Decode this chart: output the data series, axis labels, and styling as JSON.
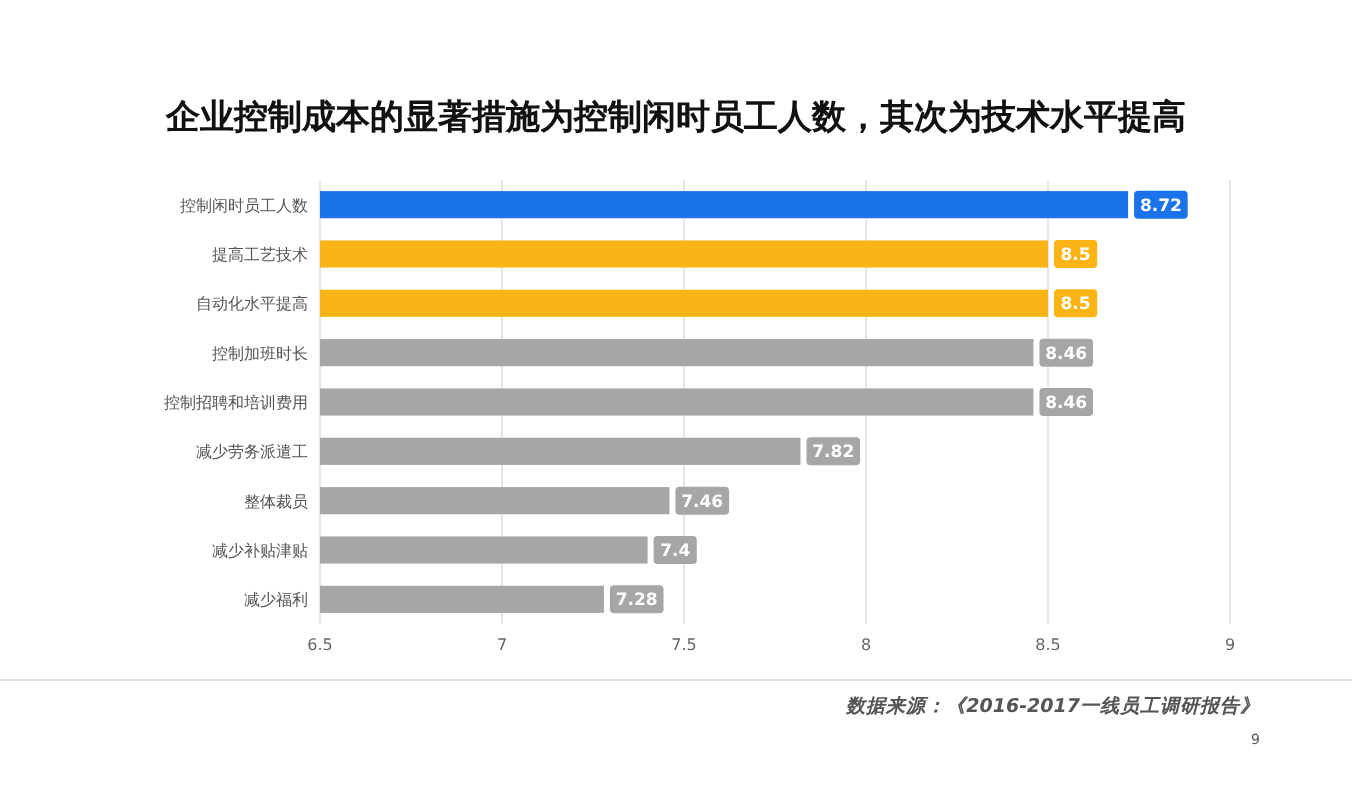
{
  "chart_data": {
    "type": "bar",
    "orientation": "horizontal",
    "title": "企业控制成本的显著措施为控制闲时员工人数，其次为技术水平提高",
    "categories": [
      "控制闲时员工人数",
      "提高工艺技术",
      "自动化水平提高",
      "控制加班时长",
      "控制招聘和培训费用",
      "减少劳务派遣工",
      "整体裁员",
      "减少补贴津贴",
      "减少福利"
    ],
    "values": [
      8.72,
      8.5,
      8.5,
      8.46,
      8.46,
      7.82,
      7.46,
      7.4,
      7.28
    ],
    "colors": [
      "#1a73e8",
      "#fbb415",
      "#fbb415",
      "#a6a6a6",
      "#a6a6a6",
      "#a6a6a6",
      "#a6a6a6",
      "#a6a6a6",
      "#a6a6a6"
    ],
    "xlim": [
      6.5,
      9
    ],
    "xticks": [
      6.5,
      7,
      7.5,
      8,
      8.5,
      9
    ],
    "grid": "x",
    "data_labels": true,
    "annotations": [
      "数据来源：《2016-2017一线员工调研报告》",
      "9"
    ]
  }
}
